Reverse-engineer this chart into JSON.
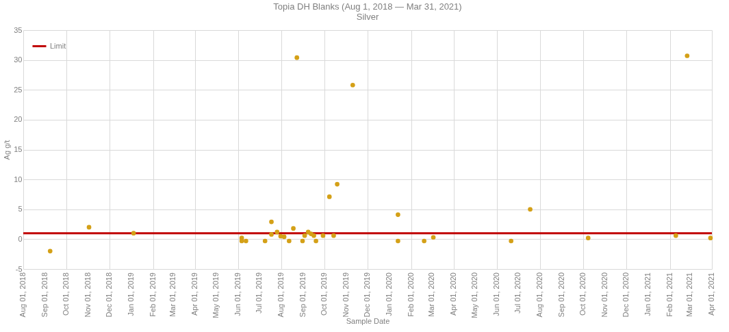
{
  "chart_data": {
    "type": "scatter",
    "title": "Topia DH Blanks  (Aug 1, 2018 — Mar 31, 2021)",
    "subtitle": "Silver",
    "xlabel": "Sample Date",
    "ylabel": "Ag g/t",
    "xlim": [
      "2018-08-01",
      "2021-04-01"
    ],
    "xticks": [
      {
        "value": "2018-08-01",
        "label": "Aug 01, 2018"
      },
      {
        "value": "2018-09-01",
        "label": "Sep 01, 2018"
      },
      {
        "value": "2018-10-01",
        "label": "Oct 01, 2018"
      },
      {
        "value": "2018-11-01",
        "label": "Nov 01, 2018"
      },
      {
        "value": "2018-12-01",
        "label": "Dec 01, 2018"
      },
      {
        "value": "2019-01-01",
        "label": "Jan 01, 2019"
      },
      {
        "value": "2019-02-01",
        "label": "Feb 01, 2019"
      },
      {
        "value": "2019-03-01",
        "label": "Mar 01, 2019"
      },
      {
        "value": "2019-04-01",
        "label": "Apr 01, 2019"
      },
      {
        "value": "2019-05-01",
        "label": "May 01, 2019"
      },
      {
        "value": "2019-06-01",
        "label": "Jun 01, 2019"
      },
      {
        "value": "2019-07-01",
        "label": "Jul 01, 2019"
      },
      {
        "value": "2019-08-01",
        "label": "Aug 01, 2019"
      },
      {
        "value": "2019-09-01",
        "label": "Sep 01, 2019"
      },
      {
        "value": "2019-10-01",
        "label": "Oct 01, 2019"
      },
      {
        "value": "2019-11-01",
        "label": "Nov 01, 2019"
      },
      {
        "value": "2019-12-01",
        "label": "Dec 01, 2019"
      },
      {
        "value": "2020-01-01",
        "label": "Jan 01, 2020"
      },
      {
        "value": "2020-02-01",
        "label": "Feb 01, 2020"
      },
      {
        "value": "2020-03-01",
        "label": "Mar 01, 2020"
      },
      {
        "value": "2020-04-01",
        "label": "Apr 01, 2020"
      },
      {
        "value": "2020-05-01",
        "label": "May 01, 2020"
      },
      {
        "value": "2020-06-01",
        "label": "Jun 01, 2020"
      },
      {
        "value": "2020-07-01",
        "label": "Jul 01, 2020"
      },
      {
        "value": "2020-08-01",
        "label": "Aug 01, 2020"
      },
      {
        "value": "2020-09-01",
        "label": "Sep 01, 2020"
      },
      {
        "value": "2020-10-01",
        "label": "Oct 01, 2020"
      },
      {
        "value": "2020-11-01",
        "label": "Nov 01, 2020"
      },
      {
        "value": "2020-12-01",
        "label": "Dec 01, 2020"
      },
      {
        "value": "2021-01-01",
        "label": "Jan 01, 2021"
      },
      {
        "value": "2021-02-01",
        "label": "Feb 01, 2021"
      },
      {
        "value": "2021-03-01",
        "label": "Mar 01, 2021"
      },
      {
        "value": "2021-04-01",
        "label": "Apr 01, 2021"
      }
    ],
    "ylim": [
      -5,
      35
    ],
    "yticks": [
      -5,
      0,
      5,
      10,
      15,
      20,
      25,
      30,
      35
    ],
    "grid": true,
    "legend": "top left",
    "marker": "circle",
    "series": [
      {
        "color": "#d4a017",
        "x": [
          "2018-09-08",
          "2018-11-02",
          "2019-01-04",
          "2019-06-06",
          "2019-06-06",
          "2019-06-12",
          "2019-07-09",
          "2019-07-18",
          "2019-07-18",
          "2019-07-26",
          "2019-07-31",
          "2019-08-05",
          "2019-08-12",
          "2019-08-18",
          "2019-08-23",
          "2019-08-31",
          "2019-09-03",
          "2019-09-08",
          "2019-09-12",
          "2019-09-16",
          "2019-09-19",
          "2019-09-29",
          "2019-10-08",
          "2019-10-14",
          "2019-10-19",
          "2019-11-10",
          "2020-01-13",
          "2020-01-13",
          "2020-02-19",
          "2020-03-03",
          "2020-06-21",
          "2020-07-18",
          "2020-10-08",
          "2021-02-09",
          "2021-02-25",
          "2021-03-30"
        ],
        "values": [
          -2.0,
          2.0,
          1.0,
          0.2,
          -0.3,
          -0.3,
          -0.3,
          2.9,
          0.8,
          1.2,
          0.5,
          0.4,
          -0.3,
          1.8,
          30.4,
          -0.3,
          0.6,
          1.2,
          0.9,
          0.6,
          -0.3,
          0.6,
          7.1,
          0.6,
          9.2,
          25.8,
          4.1,
          -0.3,
          -0.3,
          0.3,
          -0.3,
          5.0,
          0.2,
          0.6,
          30.7,
          0.2
        ]
      },
      {
        "type": "line",
        "name": "Limit",
        "color": "#c00000",
        "line_style": "solid",
        "marker": "none",
        "x": [
          "2018-08-01",
          "2021-04-01"
        ],
        "values": [
          1,
          1
        ]
      }
    ]
  }
}
